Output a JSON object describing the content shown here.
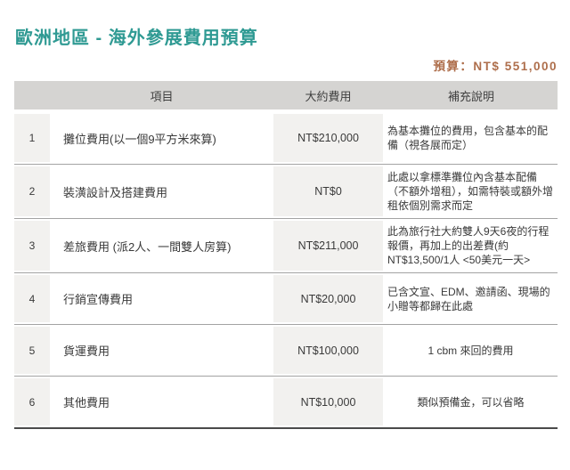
{
  "page": {
    "title": "歐洲地區 - 海外參展費用預算",
    "budget_total": "預算：NT$ 551,000"
  },
  "table": {
    "headers": {
      "item": "項目",
      "cost": "大約費用",
      "note": "補充說明"
    },
    "rows": [
      {
        "no": "1",
        "item": "攤位費用(以一個9平方米來算)",
        "cost": "NT$210,000",
        "note": "為基本攤位的費用，包含基本的配備（視各展而定）"
      },
      {
        "no": "2",
        "item": "裝潢設計及搭建費用",
        "cost": "NT$0",
        "note": "此處以拿標準攤位內含基本配備（不額外增租），如需特裝或額外增租依個別需求而定"
      },
      {
        "no": "3",
        "item": "差旅費用 (派2人、一間雙人房算)",
        "cost": "NT$211,000",
        "note": "此為旅行社大約雙人9天6夜的行程報價，再加上的出差費(約NT$13,500/1人 <50美元一天>"
      },
      {
        "no": "4",
        "item": "行銷宣傳費用",
        "cost": "NT$20,000",
        "note": "已含文宣、EDM、邀請函、現場的小贈等都歸在此處"
      },
      {
        "no": "5",
        "item": "貨運費用",
        "cost": "NT$100,000",
        "note": "1 cbm 來回的費用"
      },
      {
        "no": "6",
        "item": "其他費用",
        "cost": "NT$10,000",
        "note": "類似預備金，可以省略"
      }
    ]
  },
  "colors": {
    "title": "#2F9A93",
    "budget": "#AE6E4B",
    "header_bg": "#D5D4D2",
    "column_bg": "#F2F1EF",
    "divider": "#A3A3A3",
    "table_border": "#4B4B4B",
    "text": "#3A3A3A"
  }
}
